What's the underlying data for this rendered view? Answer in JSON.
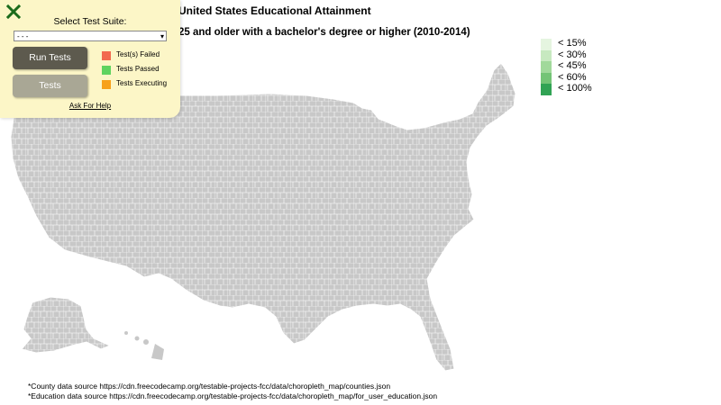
{
  "header": {
    "title": "United States Educational Attainment",
    "subtitle": "25 and older with a bachelor's degree or higher (2010-2014)"
  },
  "legend": {
    "items": [
      {
        "label": "< 15%",
        "color": "#e5f5e0"
      },
      {
        "label": "< 30%",
        "color": "#c7e9c0"
      },
      {
        "label": "< 45%",
        "color": "#a1d99b"
      },
      {
        "label": "< 60%",
        "color": "#74c476"
      },
      {
        "label": "< 100%",
        "color": "#31a354"
      }
    ]
  },
  "map": {
    "county_fill": "#c8c8c8",
    "county_border": "#ffffff"
  },
  "footnotes": {
    "county_source": "*County data source https://cdn.freecodecamp.org/testable-projects-fcc/data/choropleth_map/counties.json",
    "education_source": "*Education data source https://cdn.freecodecamp.org/testable-projects-fcc/data/choropleth_map/for_user_education.json"
  },
  "test_panel": {
    "close_icon": "close-x-icon",
    "select_label": "Select Test Suite:",
    "select_value": "- - -",
    "run_button": "Run Tests",
    "tests_button": "Tests",
    "status": [
      {
        "label": "Test(s) Failed",
        "color": "#f26a4f"
      },
      {
        "label": "Tests Passed",
        "color": "#5fd35f"
      },
      {
        "label": "Tests Executing",
        "color": "#f7a11a"
      }
    ],
    "help_link": "Ask For Help"
  }
}
